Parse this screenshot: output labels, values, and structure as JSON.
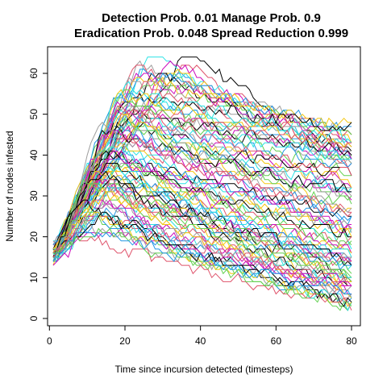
{
  "chart_data": {
    "type": "line",
    "title_line1": "Detection Prob. 0.01 Manage Prob. 0.9",
    "title_line2": "Eradication Prob. 0.048 Spread Reduction 0.999",
    "xlabel": "Time since incursion detected (timesteps)",
    "ylabel": "Number of nodes infested",
    "xlim": [
      1,
      80
    ],
    "ylim": [
      0,
      64
    ],
    "x_ticks": [
      0,
      20,
      40,
      60,
      80
    ],
    "y_ticks": [
      0,
      10,
      20,
      30,
      40,
      50,
      60
    ],
    "grid": false,
    "legend": "none",
    "n_series": 100,
    "series_palette": [
      "#000000",
      "#DF536B",
      "#61D04F",
      "#2297E6",
      "#28E2E5",
      "#CD0BBC",
      "#F5C710",
      "#9E9E9E"
    ],
    "note": "Stochastic simulation trajectories: start at 15-18 nodes, peak between ~15 and 64 around timestep 10-35, then decline toward ~4-45 by timestep 80.",
    "series_summary": [
      {
        "start": 17,
        "peak": 64,
        "peak_t": 35,
        "end": 40
      },
      {
        "start": 16,
        "peak": 59,
        "peak_t": 22,
        "end": 44
      },
      {
        "start": 17,
        "peak": 54,
        "peak_t": 20,
        "end": 42
      },
      {
        "start": 16,
        "peak": 50,
        "peak_t": 17,
        "end": 34
      },
      {
        "start": 15,
        "peak": 46,
        "peak_t": 16,
        "end": 25
      },
      {
        "start": 16,
        "peak": 41,
        "peak_t": 15,
        "end": 18
      },
      {
        "start": 15,
        "peak": 37,
        "peak_t": 14,
        "end": 12
      },
      {
        "start": 16,
        "peak": 33,
        "peak_t": 12,
        "end": 9
      },
      {
        "start": 15,
        "peak": 28,
        "peak_t": 11,
        "end": 6
      },
      {
        "start": 15,
        "peak": 22,
        "peak_t": 8,
        "end": 4
      }
    ]
  }
}
